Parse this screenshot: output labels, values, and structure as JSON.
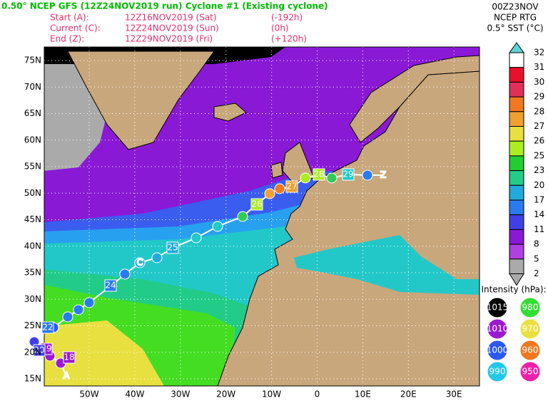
{
  "header": {
    "title": "0.50° NCEP GFS (12Z24NOV2019 run) Cyclone #1 (Existing cyclone)",
    "rows": [
      [
        "Start (A):",
        "12Z16NOV2019 (Sat)",
        "(-192h)"
      ],
      [
        "Current (C):",
        "12Z24NOV2019 (Sun)",
        "(0h)"
      ],
      [
        "End (Z):",
        "12Z29NOV2019 (Fri)",
        "(+120h)"
      ]
    ]
  },
  "product": [
    "00Z23NOV",
    "NCEP RTG",
    "0.5° SST (°C)"
  ],
  "colorbar": {
    "labels": [
      32,
      31,
      30,
      29,
      28,
      27,
      26,
      25,
      23,
      20,
      17,
      14,
      11,
      8,
      5,
      2
    ],
    "colors": [
      "#5fd3d3",
      "#ffffff",
      "#e8102a",
      "#e0305a",
      "#f07820",
      "#f0a030",
      "#e8e040",
      "#aaee22",
      "#22cc33",
      "#22cc88",
      "#22aadd",
      "#2a7af0",
      "#4040e8",
      "#8a19d6",
      "#b040e0",
      "#aaaaaa"
    ]
  },
  "map": {
    "lat_labels": [
      "15N",
      "20N",
      "25N",
      "30N",
      "35N",
      "40N",
      "45N",
      "50N",
      "55N",
      "60N",
      "65N",
      "70N",
      "75N"
    ],
    "lon_labels": [
      "50W",
      "40W",
      "30W",
      "20W",
      "10W",
      "0",
      "10E",
      "20E",
      "30E"
    ]
  },
  "legend": {
    "title": "Intensity (hPa):",
    "items": [
      {
        "label": "1015",
        "color": "#000000"
      },
      {
        "label": "980",
        "color": "#33dd33"
      },
      {
        "label": "1010",
        "color": "#9a1ad0"
      },
      {
        "label": "970",
        "color": "#e8e040"
      },
      {
        "label": "1000",
        "color": "#2a5af0"
      },
      {
        "label": "960",
        "color": "#f07820"
      },
      {
        "label": "990",
        "color": "#22c8e8"
      },
      {
        "label": "950",
        "color": "#ee22aa"
      }
    ]
  },
  "track": {
    "days": [
      18,
      19,
      20,
      22,
      24,
      25,
      26,
      27,
      28,
      29
    ],
    "markers": [
      "A",
      "C",
      "Z"
    ]
  }
}
